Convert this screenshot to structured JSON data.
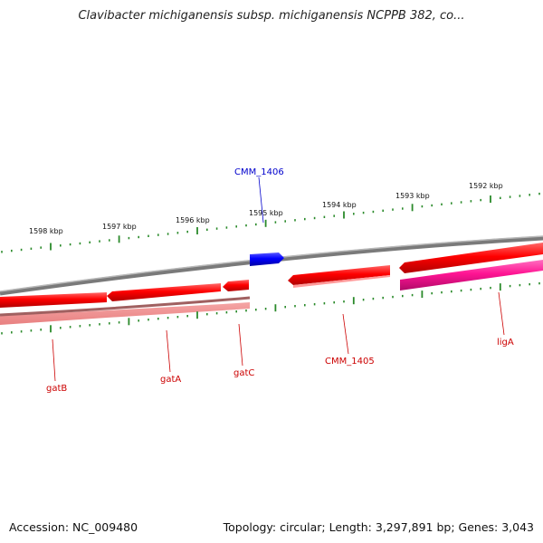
{
  "title": "Clavibacter michiganensis subsp. michiganensis NCPPB 382, co...",
  "ruler": {
    "labels": [
      "1598 kbp",
      "1597 kbp",
      "1596 kbp",
      "1595 kbp",
      "1594 kbp",
      "1593 kbp",
      "1592 kbp"
    ],
    "tick_color": "#2a8a2a"
  },
  "genes": [
    {
      "name": "gatB",
      "color": "#ff0000",
      "label_color": "#cc0000"
    },
    {
      "name": "gatA",
      "color": "#ff0000",
      "label_color": "#cc0000"
    },
    {
      "name": "gatC",
      "color": "#ff0000",
      "label_color": "#cc0000"
    },
    {
      "name": "CMM_1406",
      "color": "#0000ff",
      "label_color": "#0000cc"
    },
    {
      "name": "CMM_1405",
      "color": "#ff0000",
      "label_color": "#cc0000"
    },
    {
      "name": "ligA",
      "color": "#ff1493",
      "label_color": "#cc0000"
    }
  ],
  "footer": {
    "accession": "Accession: NC_009480",
    "topology": "Topology: circular; Length: 3,297,891 bp; Genes: 3,043"
  }
}
